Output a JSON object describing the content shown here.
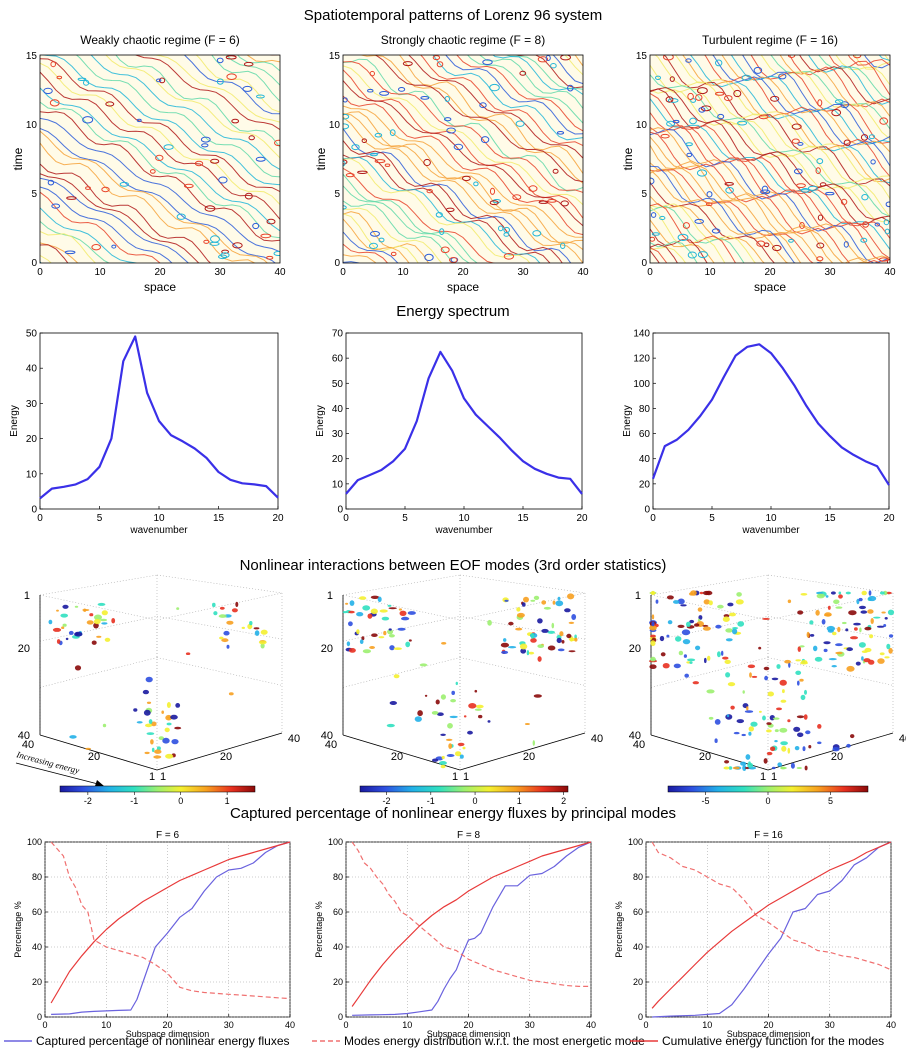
{
  "sections": {
    "patterns_title": "Spatiotemporal patterns of Lorenz 96 system",
    "spectrum_title": "Energy spectrum",
    "interactions_title": "Nonlinear interactions between EOF modes (3rd order statistics)",
    "flux_title": "Captured percentage of nonlinear energy fluxes by principal modes"
  },
  "patterns": {
    "panels": [
      {
        "title": "Weakly chaotic regime (F = 6)"
      },
      {
        "title": "Strongly chaotic regime (F = 8)"
      },
      {
        "title": "Turbulent regime (F = 16)"
      }
    ],
    "xlabel": "space",
    "ylabel": "time",
    "xticks": [
      "0",
      "10",
      "20",
      "30",
      "40"
    ],
    "yticks": [
      "0",
      "5",
      "10",
      "15"
    ],
    "colors": [
      "#2b5cd9",
      "#22b6d8",
      "#5fd8a8",
      "#f2ea6a",
      "#f6a23a",
      "#e8432a",
      "#b01818"
    ]
  },
  "chart_data": [
    {
      "type": "line",
      "title": "",
      "xlabel": "wavenumber",
      "ylabel": "Energy",
      "xlim": [
        0,
        20
      ],
      "ylim": [
        0,
        50
      ],
      "xticks": [
        "0",
        "5",
        "10",
        "15",
        "20"
      ],
      "yticks": [
        "0",
        "10",
        "20",
        "30",
        "40",
        "50"
      ],
      "x": [
        0,
        1,
        2,
        3,
        4,
        5,
        6,
        7,
        8,
        9,
        10,
        11,
        12,
        13,
        14,
        15,
        16,
        17,
        18,
        19,
        20
      ],
      "series": [
        {
          "values": [
            3,
            5.8,
            6.3,
            7,
            8.5,
            12,
            20,
            42,
            49,
            33,
            25,
            21,
            19.2,
            17.2,
            14.5,
            10.5,
            8.3,
            7.3,
            7,
            6.5,
            3.2
          ],
          "color": "#3a30e8"
        }
      ]
    },
    {
      "type": "line",
      "title": "",
      "xlabel": "wavenumber",
      "ylabel": "Energy",
      "xlim": [
        0,
        20
      ],
      "ylim": [
        0,
        70
      ],
      "xticks": [
        "0",
        "5",
        "10",
        "15",
        "20"
      ],
      "yticks": [
        "0",
        "10",
        "20",
        "30",
        "40",
        "50",
        "60",
        "70"
      ],
      "x": [
        0,
        1,
        2,
        3,
        4,
        5,
        6,
        7,
        8,
        9,
        10,
        11,
        12,
        13,
        14,
        15,
        16,
        17,
        18,
        19,
        20
      ],
      "series": [
        {
          "values": [
            6,
            11.5,
            13.5,
            15.5,
            19,
            24,
            35,
            52,
            62.5,
            55,
            44,
            37.5,
            33,
            28.5,
            23.5,
            19,
            16,
            14,
            12.5,
            12,
            6
          ],
          "color": "#3a30e8"
        }
      ]
    },
    {
      "type": "line",
      "title": "",
      "xlabel": "wavenumber",
      "ylabel": "Energy",
      "xlim": [
        0,
        20
      ],
      "ylim": [
        0,
        140
      ],
      "xticks": [
        "0",
        "5",
        "10",
        "15",
        "20"
      ],
      "yticks": [
        "0",
        "20",
        "40",
        "60",
        "80",
        "100",
        "120",
        "140"
      ],
      "x": [
        0,
        1,
        2,
        3,
        4,
        5,
        6,
        7,
        8,
        9,
        10,
        11,
        12,
        13,
        14,
        15,
        16,
        17,
        18,
        19,
        20
      ],
      "series": [
        {
          "values": [
            24,
            50,
            55,
            63,
            74,
            87,
            105,
            122,
            129,
            131,
            124,
            112,
            98,
            82,
            68,
            58,
            49,
            43,
            38,
            34,
            19
          ],
          "color": "#3a30e8"
        }
      ]
    },
    {
      "type": "line",
      "title": "F = 6",
      "xlabel": "Subspace dimension",
      "ylabel": "Percentage %",
      "xlim": [
        0,
        40
      ],
      "ylim": [
        0,
        100
      ],
      "xticks": [
        "0",
        "10",
        "20",
        "30",
        "40"
      ],
      "yticks": [
        "0",
        "20",
        "40",
        "60",
        "80",
        "100"
      ],
      "series": [
        {
          "name": "Captured percentage of nonlinear energy fluxes",
          "style": "solid",
          "color": "#6a62de",
          "x": [
            1,
            4,
            6,
            8,
            10,
            12,
            14,
            15,
            16,
            17,
            18,
            20,
            22,
            24,
            26,
            28,
            30,
            32,
            34,
            36,
            38,
            40
          ],
          "values": [
            1.5,
            1.8,
            2.8,
            3.2,
            3.5,
            3.8,
            4,
            10,
            20,
            30,
            40,
            48,
            57,
            62,
            72,
            80,
            84,
            85,
            88,
            94,
            98,
            100
          ]
        },
        {
          "name": "Modes energy distribution w.r.t. the most energetic mode",
          "style": "dashed",
          "color": "#f07070",
          "x": [
            1,
            2,
            3,
            4,
            5,
            6,
            7,
            8,
            9,
            10,
            12,
            14,
            16,
            18,
            20,
            22,
            24,
            26,
            28,
            30,
            32,
            34,
            36,
            38,
            40
          ],
          "values": [
            100,
            96,
            92,
            80,
            74,
            64,
            60,
            44,
            42,
            40,
            38,
            36,
            34,
            30,
            25,
            17,
            15,
            14,
            13.5,
            13,
            12.5,
            12,
            11.5,
            11,
            10.5
          ]
        },
        {
          "name": "Cumulative energy function for the modes",
          "style": "solid",
          "color": "#e83a3a",
          "x": [
            1,
            2,
            4,
            6,
            8,
            10,
            12,
            14,
            16,
            18,
            20,
            22,
            24,
            26,
            28,
            30,
            32,
            34,
            36,
            38,
            40
          ],
          "values": [
            8,
            14,
            26,
            35,
            43,
            50,
            56,
            61,
            66,
            70,
            74,
            78,
            81,
            84,
            87,
            90,
            92,
            94,
            96,
            98,
            100
          ]
        }
      ]
    },
    {
      "type": "line",
      "title": "F = 8",
      "xlabel": "Subspace dimension",
      "ylabel": "Percentage %",
      "xlim": [
        0,
        40
      ],
      "ylim": [
        0,
        100
      ],
      "xticks": [
        "0",
        "10",
        "20",
        "30",
        "40"
      ],
      "yticks": [
        "0",
        "20",
        "40",
        "60",
        "80",
        "100"
      ],
      "series": [
        {
          "name": "Captured percentage of nonlinear energy fluxes",
          "style": "solid",
          "color": "#6a62de",
          "x": [
            1,
            4,
            8,
            10,
            12,
            14,
            15,
            16,
            17,
            18,
            19,
            20,
            21,
            22,
            24,
            26,
            28,
            30,
            32,
            34,
            36,
            38,
            40
          ],
          "values": [
            1,
            1.2,
            1.5,
            2,
            3,
            4,
            9,
            16,
            22,
            27,
            36,
            44,
            45,
            48,
            63,
            75,
            75,
            81,
            82,
            86,
            92,
            97,
            100
          ]
        },
        {
          "name": "Modes energy distribution w.r.t. the most energetic mode",
          "style": "dashed",
          "color": "#f07070",
          "x": [
            1,
            2,
            3,
            4,
            5,
            6,
            7,
            8,
            9,
            10,
            12,
            14,
            16,
            18,
            20,
            22,
            24,
            26,
            28,
            30,
            32,
            34,
            36,
            38,
            40
          ],
          "values": [
            100,
            95,
            88,
            85,
            80,
            76,
            70,
            66,
            60,
            58,
            52,
            46,
            40,
            38,
            33,
            30,
            27,
            25,
            23,
            21,
            20,
            19,
            18,
            17.5,
            17.5
          ]
        },
        {
          "name": "Cumulative energy function for the modes",
          "style": "solid",
          "color": "#e83a3a",
          "x": [
            1,
            2,
            4,
            6,
            8,
            10,
            12,
            14,
            16,
            18,
            20,
            22,
            24,
            26,
            28,
            30,
            32,
            34,
            36,
            38,
            40
          ],
          "values": [
            6,
            11,
            21,
            30,
            38,
            45,
            52,
            58,
            63,
            67,
            72,
            76,
            80,
            83,
            86,
            89,
            92,
            94,
            96,
            98,
            100
          ]
        }
      ]
    },
    {
      "type": "line",
      "title": "F = 16",
      "xlabel": "Subspace dimension",
      "ylabel": "Percentage %",
      "xlim": [
        0,
        40
      ],
      "ylim": [
        0,
        100
      ],
      "xticks": [
        "0",
        "10",
        "20",
        "30",
        "40"
      ],
      "yticks": [
        "0",
        "20",
        "40",
        "60",
        "80",
        "100"
      ],
      "series": [
        {
          "name": "Captured percentage of nonlinear energy fluxes",
          "style": "solid",
          "color": "#6a62de",
          "x": [
            1,
            4,
            8,
            10,
            12,
            14,
            16,
            18,
            20,
            22,
            24,
            26,
            28,
            30,
            32,
            34,
            36,
            38,
            40
          ],
          "values": [
            0,
            0.5,
            1,
            1.5,
            2,
            7,
            16,
            26,
            36,
            45,
            60,
            62,
            70,
            72,
            78,
            87,
            91,
            97,
            100
          ]
        },
        {
          "name": "Modes energy distribution w.r.t. the most energetic mode",
          "style": "dashed",
          "color": "#f07070",
          "x": [
            1,
            2,
            4,
            6,
            8,
            10,
            12,
            14,
            16,
            18,
            20,
            22,
            24,
            26,
            28,
            30,
            32,
            34,
            36,
            38,
            40
          ],
          "values": [
            100,
            94,
            91,
            86,
            84,
            80,
            76,
            74,
            67,
            58,
            54,
            49,
            44,
            42,
            38,
            37,
            35,
            34,
            32,
            30,
            27
          ]
        },
        {
          "name": "Cumulative energy function for the modes",
          "style": "solid",
          "color": "#e83a3a",
          "x": [
            1,
            2,
            4,
            6,
            8,
            10,
            12,
            14,
            16,
            18,
            20,
            22,
            24,
            26,
            28,
            30,
            32,
            34,
            36,
            38,
            40
          ],
          "values": [
            5,
            9,
            16,
            23,
            30,
            37,
            43,
            49,
            54,
            59,
            64,
            68,
            72,
            76,
            80,
            84,
            87,
            90,
            94,
            97,
            100
          ]
        }
      ]
    }
  ],
  "interactions": {
    "annotation": "Increasing energy",
    "axis_ticks_vertical": [
      "1",
      "20",
      "40"
    ],
    "axis_ticks_left": [
      "40",
      "20",
      "1"
    ],
    "axis_ticks_right": [
      "1",
      "20",
      "40"
    ],
    "panels": [
      {
        "colorbar_ticks": [
          "-2",
          "-1",
          "0",
          "1"
        ]
      },
      {
        "colorbar_ticks": [
          "-2",
          "-1",
          "0",
          "1",
          "2"
        ]
      },
      {
        "colorbar_ticks": [
          "-5",
          "0",
          "5"
        ]
      }
    ],
    "colormap": [
      "#1a1aa0",
      "#2e4fe0",
      "#22b0e8",
      "#30e0c0",
      "#9cf070",
      "#f4f030",
      "#f7a020",
      "#e83020",
      "#8a0a0a"
    ]
  },
  "legend": {
    "items": [
      {
        "label": "Captured percentage of nonlinear energy fluxes",
        "color": "#6a62de",
        "style": "solid"
      },
      {
        "label": "Modes energy distribution w.r.t. the most energetic mode",
        "color": "#f07070",
        "style": "dashed"
      },
      {
        "label": "Cumulative energy function for the modes",
        "color": "#e83a3a",
        "style": "solid"
      }
    ]
  }
}
